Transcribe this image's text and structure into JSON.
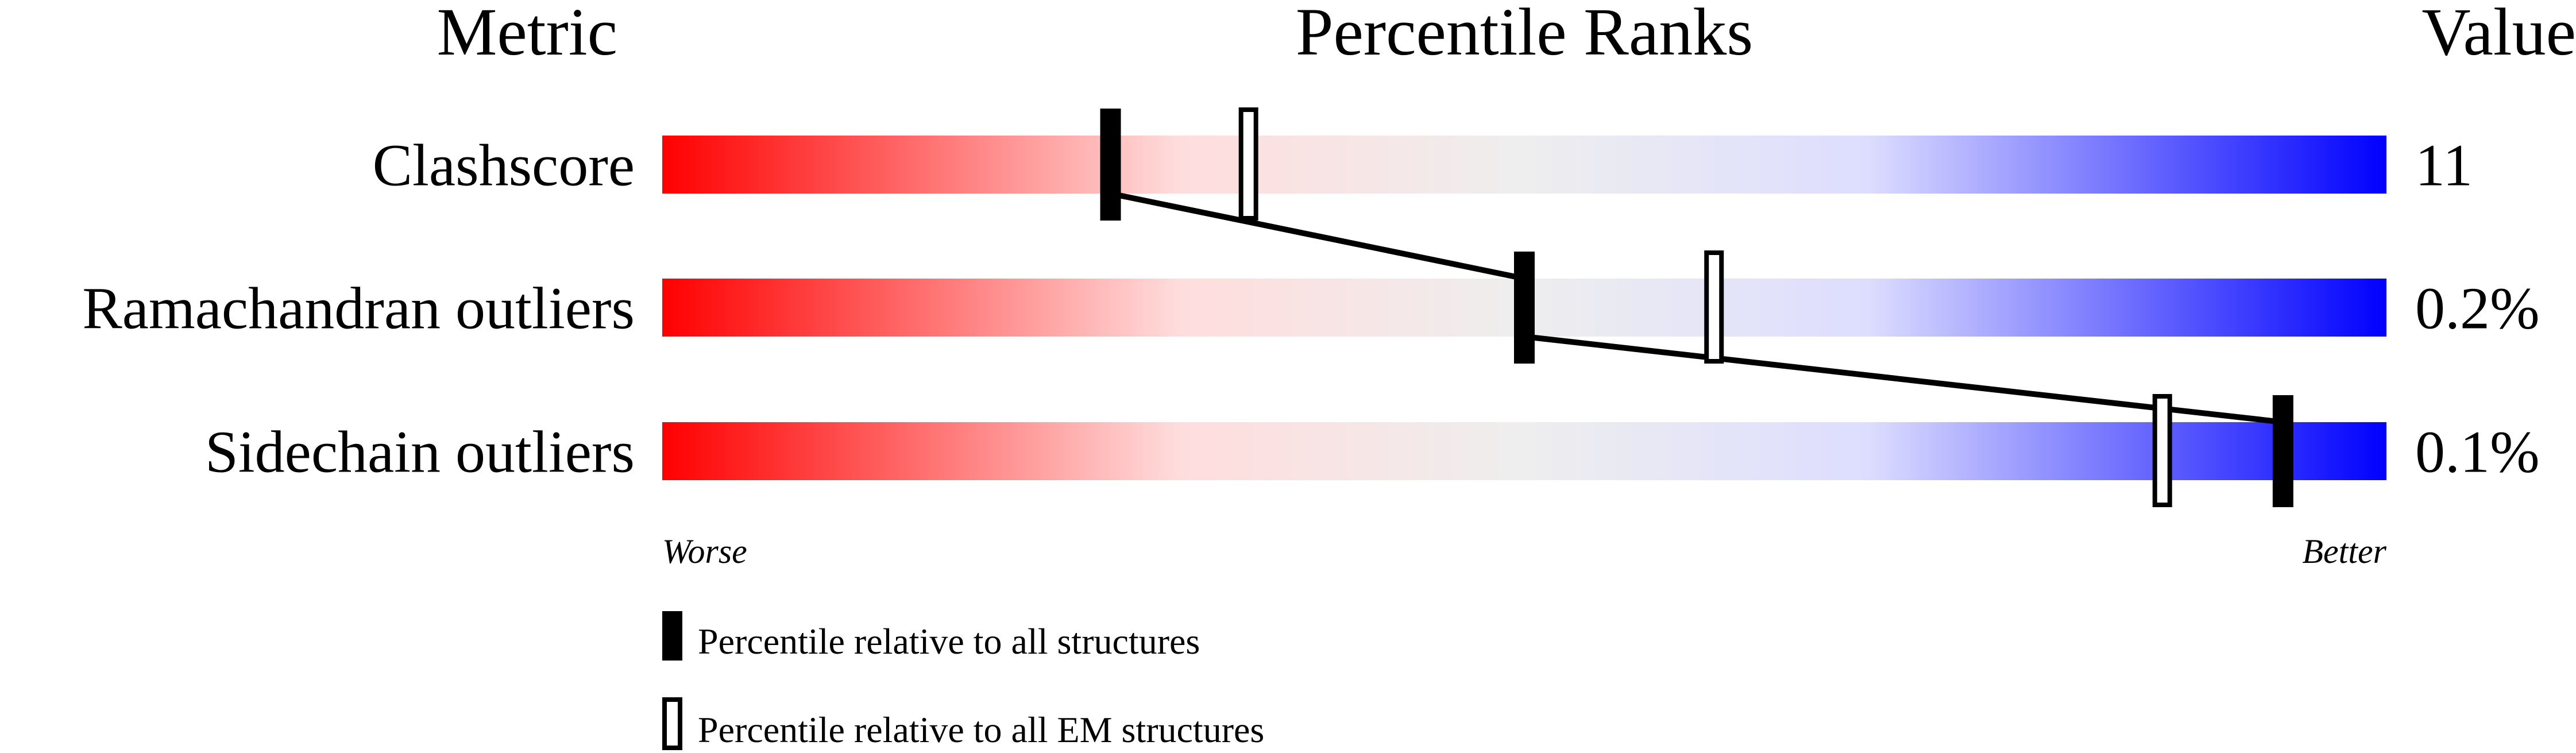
{
  "chart_data": {
    "type": "percentile-slider",
    "headers": {
      "metric": "Metric",
      "ranks": "Percentile Ranks",
      "value": "Value"
    },
    "xlim": [
      0,
      100
    ],
    "axis_labels": {
      "left": "Worse",
      "right": "Better"
    },
    "gradient_colors": [
      "#ff0000",
      "#ffdddd",
      "#eeeeee",
      "#ddddff",
      "#0000ff"
    ],
    "metrics": [
      {
        "name": "Clashscore",
        "value": "11",
        "percentile_all": 26,
        "percentile_em": 34
      },
      {
        "name": "Ramachandran outliers",
        "value": "0.2%",
        "percentile_all": 50,
        "percentile_em": 61
      },
      {
        "name": "Sidechain outliers",
        "value": "0.1%",
        "percentile_all": 94,
        "percentile_em": 87
      }
    ],
    "legend": [
      {
        "marker": "filled",
        "label": "Percentile relative to all structures"
      },
      {
        "marker": "open",
        "label": "Percentile relative to all EM structures"
      }
    ]
  }
}
